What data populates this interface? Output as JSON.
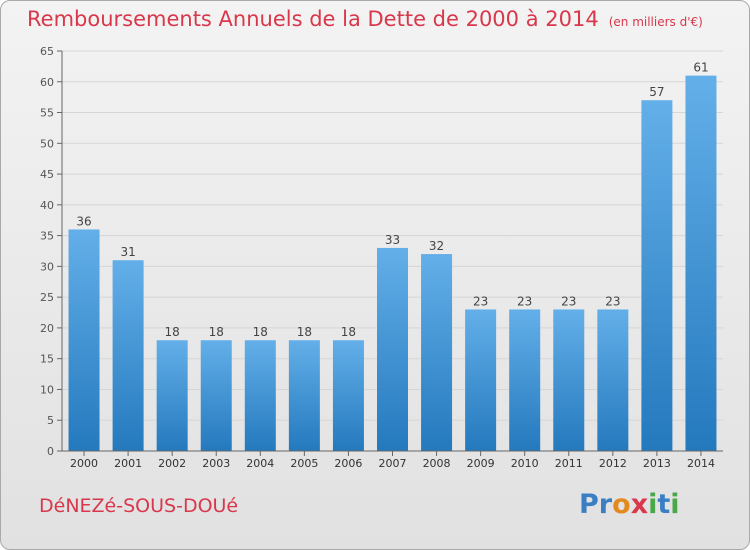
{
  "header": {
    "title": "Remboursements Annuels de la Dette de 2000 à 2014",
    "unit_note": "(en milliers d'€)"
  },
  "footer": {
    "city": "DéNEZé-SOUS-DOUé",
    "logo_letters": [
      "P",
      "r",
      "o",
      "x",
      "i",
      "t",
      "i"
    ]
  },
  "colors": {
    "title": "#d9374b",
    "bar_light": "#63afe9",
    "bar_dark": "#2479bd",
    "logo": [
      "#3a7fc4",
      "#3a7fc4",
      "#e38a1f",
      "#d9374b",
      "#4aa84a",
      "#3a7fc4",
      "#4aa84a"
    ]
  },
  "chart_data": {
    "type": "bar",
    "title": "Remboursements Annuels de la Dette de 2000 à 2014",
    "xlabel": "",
    "ylabel": "",
    "ylim": [
      0,
      65
    ],
    "yticks": [
      0,
      5,
      10,
      15,
      20,
      25,
      30,
      35,
      40,
      45,
      50,
      55,
      60,
      65
    ],
    "grid": true,
    "categories": [
      "2000",
      "2001",
      "2002",
      "2003",
      "2004",
      "2005",
      "2006",
      "2007",
      "2008",
      "2009",
      "2010",
      "2011",
      "2012",
      "2013",
      "2014"
    ],
    "values": [
      36,
      31,
      18,
      18,
      18,
      18,
      18,
      33,
      32,
      23,
      23,
      23,
      23,
      57,
      61
    ],
    "labels": [
      "36",
      "31",
      "18",
      "18",
      "18",
      "18",
      "18",
      "33",
      "32",
      "23",
      "23",
      "23",
      "23",
      "57",
      "61"
    ]
  }
}
